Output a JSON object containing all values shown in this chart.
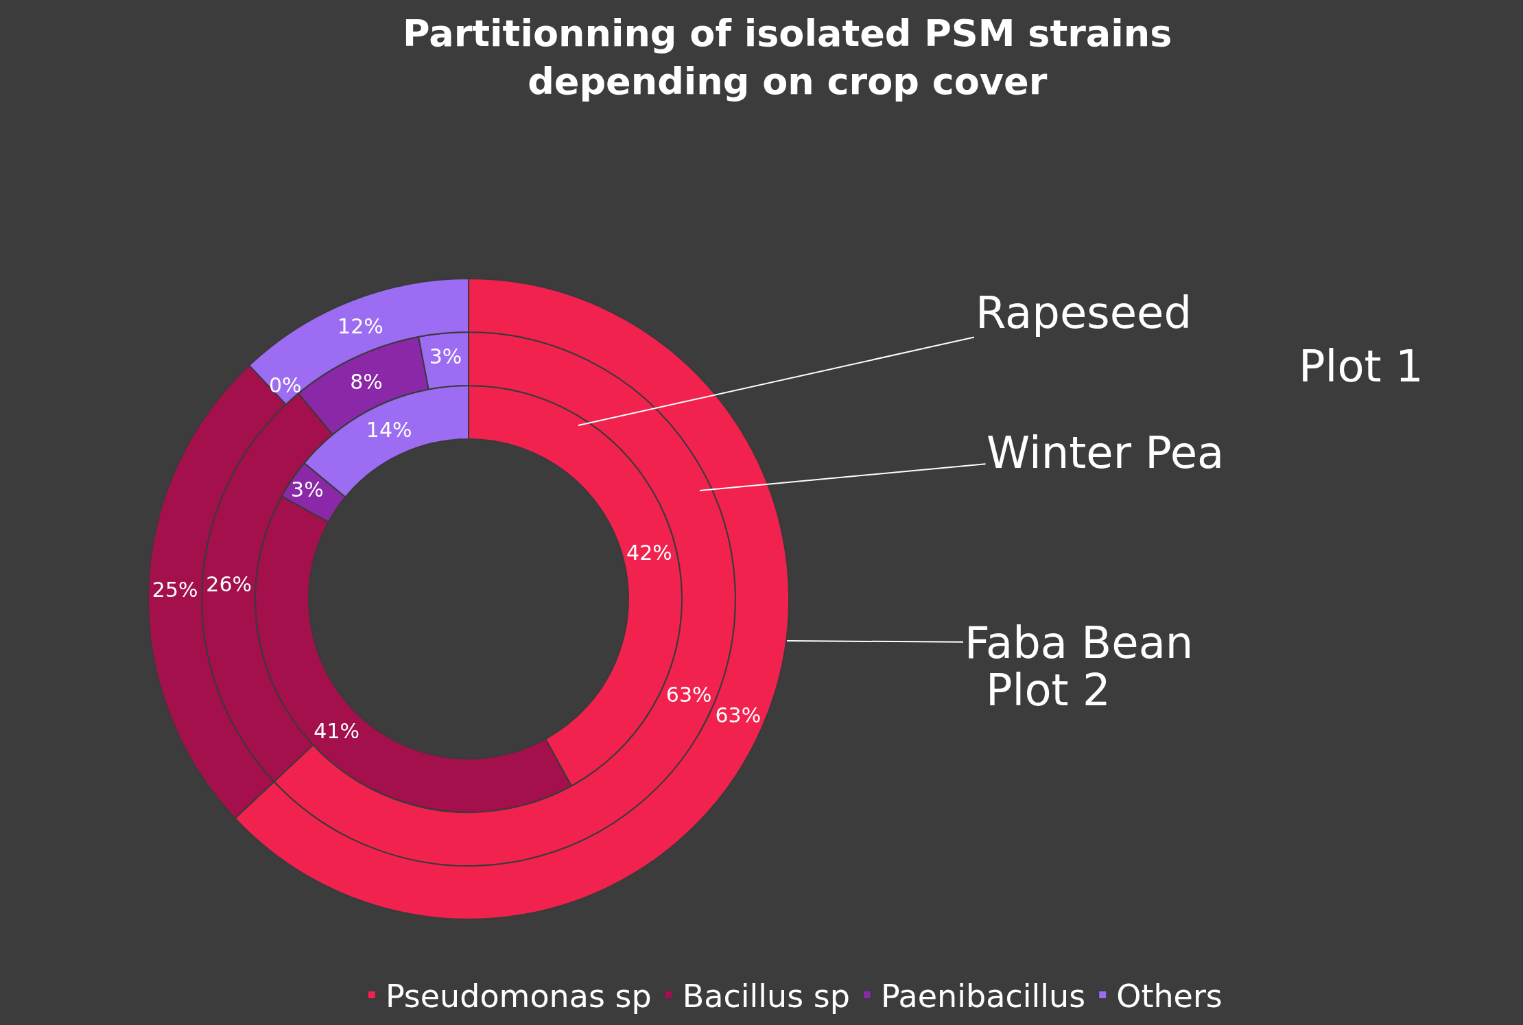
{
  "chart_data": {
    "type": "donut",
    "title": "Partitionning of isolated PSM strains\ndepending on crop cover",
    "categories": [
      "Pseudomonas sp",
      "Bacillus sp",
      "Paenibacillus",
      "Others"
    ],
    "colors": [
      "#f2224f",
      "#a3104c",
      "#8a28a8",
      "#9c6cf2"
    ],
    "series": [
      {
        "name": "Rapeseed",
        "values": [
          42,
          41,
          3,
          14
        ],
        "value_labels": [
          "42%",
          "41%",
          "3%",
          "14%"
        ]
      },
      {
        "name": "Winter Pea",
        "values": [
          63,
          26,
          8,
          3
        ],
        "value_labels": [
          "63%",
          "26%",
          "8%",
          "3%"
        ]
      },
      {
        "name": "Faba Bean",
        "values": [
          63,
          25,
          0,
          12
        ],
        "value_labels": [
          "63%",
          "25%",
          "0%",
          "12%"
        ]
      }
    ],
    "annotations": [
      "Plot 1",
      "Plot 2"
    ],
    "legend": "bottom"
  }
}
